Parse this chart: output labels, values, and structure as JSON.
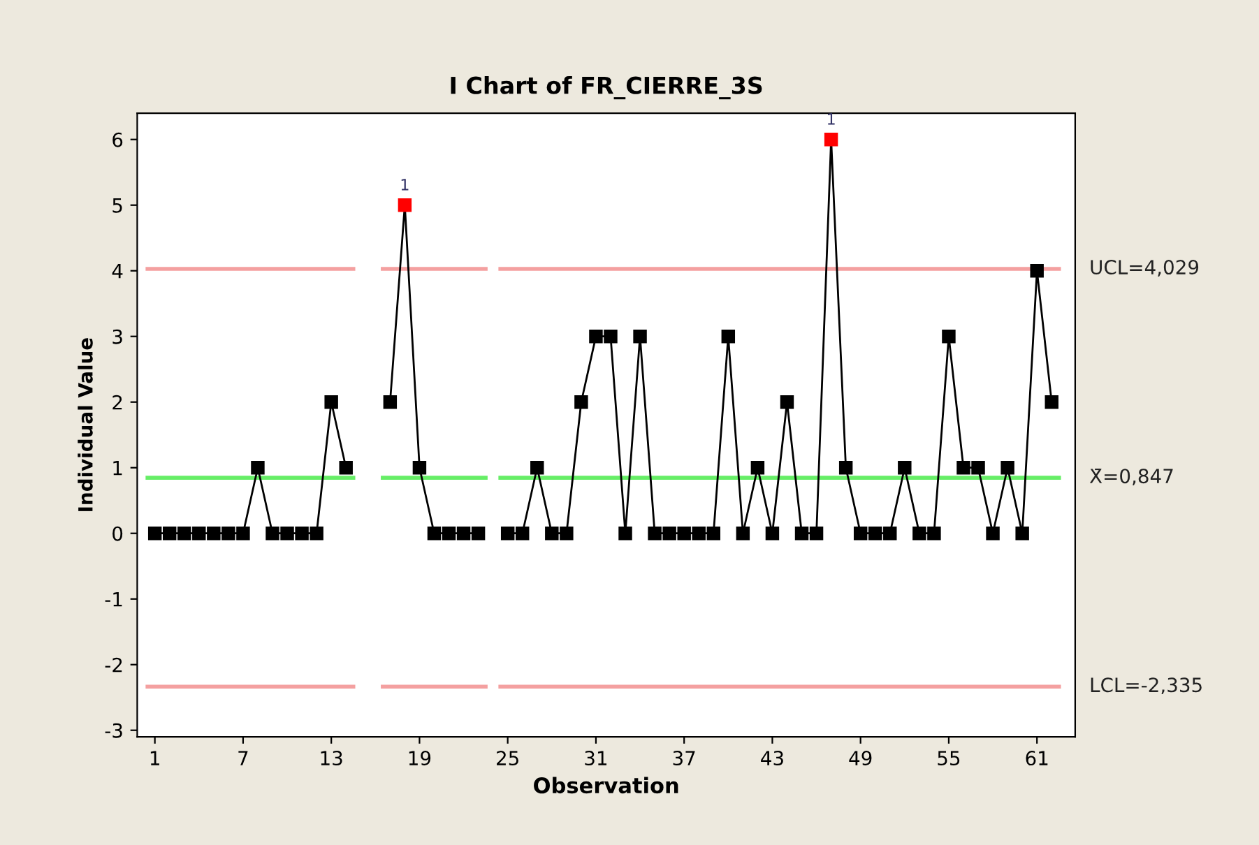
{
  "chart_data": {
    "type": "line",
    "title": "I Chart of FR_CIERRE_3S",
    "xlabel": "Observation",
    "ylabel": "Individual Value",
    "x": [
      1,
      2,
      3,
      4,
      5,
      6,
      7,
      8,
      9,
      10,
      11,
      12,
      13,
      14,
      15,
      16,
      17,
      18,
      19,
      20,
      21,
      22,
      23,
      24,
      25,
      26,
      27,
      28,
      29,
      30,
      31,
      32,
      33,
      34,
      35,
      36,
      37,
      38,
      39,
      40,
      41,
      42,
      43,
      44,
      45,
      46,
      47,
      48,
      49,
      50,
      51,
      52,
      53,
      54,
      55,
      56,
      57,
      58,
      59,
      60,
      61,
      62
    ],
    "series": [
      {
        "color": "#000000",
        "values": [
          0,
          0,
          0,
          0,
          0,
          0,
          0,
          1,
          0,
          0,
          0,
          0,
          2,
          1,
          null,
          null,
          2,
          5,
          1,
          0,
          0,
          0,
          0,
          null,
          0,
          0,
          1,
          0,
          0,
          2,
          3,
          3,
          0,
          3,
          0,
          0,
          0,
          0,
          0,
          3,
          0,
          1,
          0,
          2,
          0,
          0,
          6,
          1,
          0,
          0,
          0,
          1,
          0,
          0,
          3,
          1,
          1,
          0,
          1,
          0,
          4,
          2
        ],
        "colors": [
          "#000000",
          "#000000",
          "#000000",
          "#000000",
          "#000000",
          "#000000",
          "#000000",
          "#000000",
          "#000000",
          "#000000",
          "#000000",
          "#000000",
          "#000000",
          "#000000",
          "#000000",
          "#000000",
          "#000000",
          "#ff0000",
          "#000000",
          "#000000",
          "#000000",
          "#000000",
          "#000000",
          "#000000",
          "#000000",
          "#000000",
          "#000000",
          "#000000",
          "#000000",
          "#000000",
          "#000000",
          "#000000",
          "#000000",
          "#000000",
          "#000000",
          "#000000",
          "#000000",
          "#000000",
          "#000000",
          "#000000",
          "#000000",
          "#000000",
          "#000000",
          "#000000",
          "#000000",
          "#000000",
          "#ff0000",
          "#000000",
          "#000000",
          "#000000",
          "#000000",
          "#000000",
          "#000000",
          "#000000",
          "#000000",
          "#000000",
          "#000000",
          "#000000",
          "#000000",
          "#000000",
          "#000000",
          "#000000"
        ]
      }
    ],
    "marker": "square",
    "line_style": "solid",
    "legend": false,
    "xlim": [
      -0.2,
      63.6
    ],
    "xticks": [
      1,
      7,
      13,
      19,
      25,
      31,
      37,
      43,
      49,
      55,
      61
    ],
    "ylim": [
      -3.1,
      6.4
    ],
    "yticks": [
      -3,
      -2,
      -1,
      0,
      1,
      2,
      3,
      4,
      5,
      6
    ],
    "ref_lines": [
      {
        "axis": "y",
        "value": 4.029,
        "label": "UCL=4,029",
        "color": "#f4a0a0",
        "line_style": "solid"
      },
      {
        "axis": "y",
        "value": 0.847,
        "label": "X̄=0,847",
        "color": "#66ee66",
        "line_style": "solid"
      },
      {
        "axis": "y",
        "value": -2.335,
        "label": "LCL=-2,335",
        "color": "#f4a0a0",
        "line_style": "solid"
      }
    ],
    "annotations": [
      {
        "text": "1",
        "x": 18,
        "y": 5
      },
      {
        "text": "1",
        "x": 47,
        "y": 6
      }
    ]
  }
}
